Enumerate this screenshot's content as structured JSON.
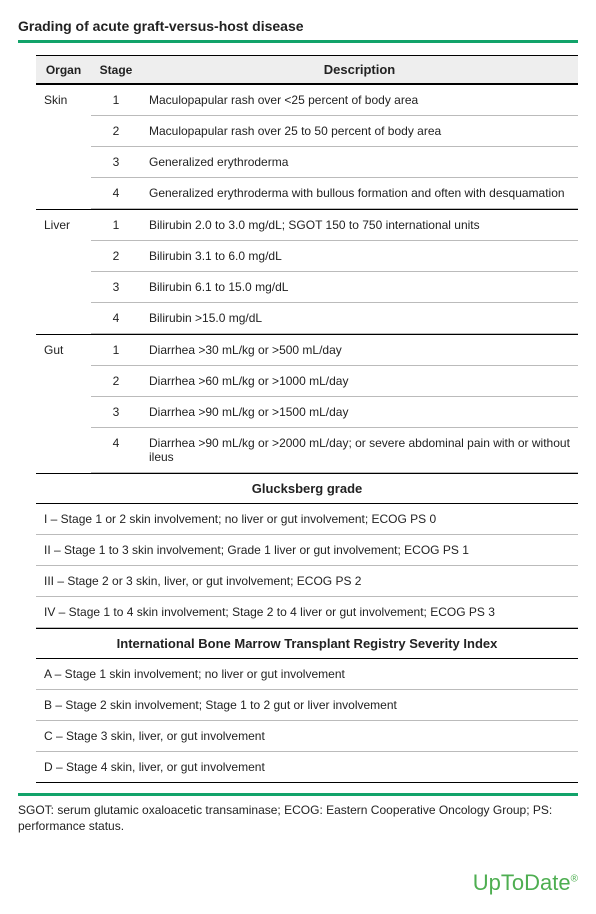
{
  "colors": {
    "accent": "#12a36a",
    "header_bg": "#eeeeee",
    "border_strong": "#000000",
    "border_light": "#bbbbbb",
    "logo": "#4eae51",
    "text": "#222222",
    "background": "#ffffff"
  },
  "typography": {
    "body_family": "Verdana, Geneva, sans-serif",
    "body_size_pt": 9,
    "title_size_pt": 10.5,
    "logo_family": "Segoe UI, Arial, sans-serif",
    "logo_size_pt": 16
  },
  "title": "Grading of acute graft-versus-host disease",
  "table": {
    "headers": {
      "organ": "Organ",
      "stage": "Stage",
      "desc": "Description"
    },
    "groups": [
      {
        "organ": "Skin",
        "rows": [
          {
            "stage": "1",
            "desc": "Maculopapular rash over <25 percent of body area"
          },
          {
            "stage": "2",
            "desc": "Maculopapular rash over 25 to 50 percent of body area"
          },
          {
            "stage": "3",
            "desc": "Generalized erythroderma"
          },
          {
            "stage": "4",
            "desc": "Generalized erythroderma with bullous formation and often with desquamation"
          }
        ]
      },
      {
        "organ": "Liver",
        "rows": [
          {
            "stage": "1",
            "desc": "Bilirubin 2.0 to 3.0 mg/dL; SGOT 150 to 750 international units"
          },
          {
            "stage": "2",
            "desc": "Bilirubin 3.1 to 6.0 mg/dL"
          },
          {
            "stage": "3",
            "desc": "Bilirubin 6.1 to 15.0 mg/dL"
          },
          {
            "stage": "4",
            "desc": "Bilirubin >15.0 mg/dL"
          }
        ]
      },
      {
        "organ": "Gut",
        "rows": [
          {
            "stage": "1",
            "desc": "Diarrhea >30 mL/kg or >500 mL/day"
          },
          {
            "stage": "2",
            "desc": "Diarrhea >60 mL/kg or >1000 mL/day"
          },
          {
            "stage": "3",
            "desc": "Diarrhea >90 mL/kg or >1500 mL/day"
          },
          {
            "stage": "4",
            "desc": "Diarrhea >90 mL/kg or >2000 mL/day; or severe abdominal pain with or without ileus"
          }
        ]
      }
    ],
    "sections": [
      {
        "title": "Glucksberg grade",
        "rows": [
          "I – Stage 1 or 2 skin involvement; no liver or gut involvement; ECOG PS 0",
          "II – Stage 1 to 3 skin involvement; Grade 1 liver or gut involvement; ECOG PS 1",
          "III – Stage 2 or 3 skin, liver, or gut involvement; ECOG PS 2",
          "IV – Stage 1 to 4 skin involvement; Stage 2 to 4 liver or gut involvement; ECOG PS 3"
        ]
      },
      {
        "title": "International Bone Marrow Transplant Registry Severity Index",
        "rows": [
          "A – Stage 1 skin involvement; no liver or gut involvement",
          "B – Stage 2 skin involvement; Stage 1 to 2 gut or liver involvement",
          "C – Stage 3 skin, liver, or gut involvement",
          "D – Stage 4 skin, liver, or gut involvement"
        ]
      }
    ]
  },
  "footnote": "SGOT: serum glutamic oxaloacetic transaminase; ECOG: Eastern Cooperative Oncology Group; PS: performance status.",
  "logo": {
    "text": "UpToDate",
    "reg": "®"
  }
}
